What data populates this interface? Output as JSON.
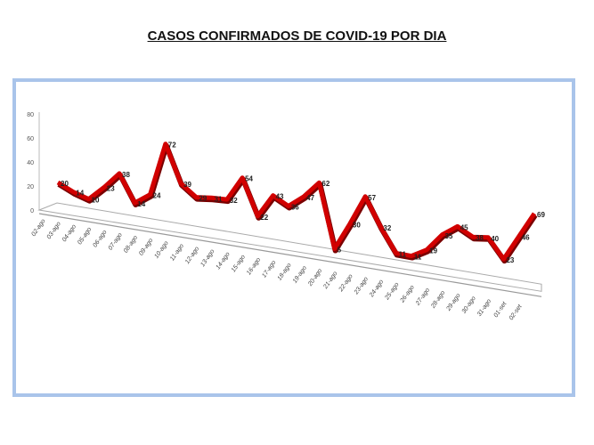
{
  "chart_data": {
    "type": "line",
    "title": "CASOS CONFIRMADOS DE COVID-19 POR DIA",
    "categories": [
      "02-ago",
      "03-ago",
      "04-ago",
      "05-ago",
      "06-ago",
      "07-ago",
      "08-ago",
      "09-ago",
      "10-ago",
      "11-ago",
      "12-ago",
      "13-ago",
      "14-ago",
      "15-ago",
      "16-ago",
      "17-ago",
      "18-ago",
      "19-ago",
      "20-ago",
      "21-ago",
      "22-ago",
      "23-ago",
      "24-ago",
      "25-ago",
      "26-ago",
      "27-ago",
      "28-ago",
      "29-ago",
      "30-ago",
      "31-ago",
      "01-set",
      "02-set"
    ],
    "values": [
      20,
      14,
      10,
      23,
      38,
      14,
      24,
      72,
      39,
      29,
      31,
      32,
      54,
      22,
      43,
      36,
      47,
      62,
      5,
      30,
      57,
      32,
      11,
      11,
      19,
      35,
      45,
      38,
      40,
      23,
      46,
      69
    ],
    "yticks": [
      0,
      20,
      40,
      60,
      80
    ],
    "ylim": [
      0,
      80
    ],
    "grid": false,
    "legend": "none",
    "perspective": "3d",
    "line_color": "#d10000",
    "frame_color": "#a9c4ea"
  }
}
